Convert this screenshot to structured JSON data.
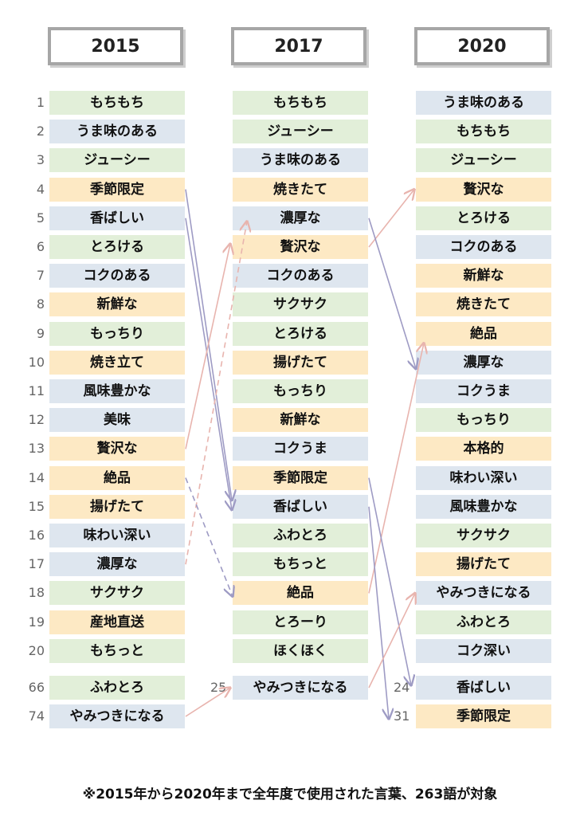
{
  "years": [
    "2015",
    "2017",
    "2020"
  ],
  "ranks": [
    "1",
    "2",
    "3",
    "4",
    "5",
    "6",
    "7",
    "8",
    "9",
    "10",
    "11",
    "12",
    "13",
    "14",
    "15",
    "16",
    "17",
    "18",
    "19",
    "20"
  ],
  "col2015": [
    {
      "label": "もちもち",
      "color": "green"
    },
    {
      "label": "うま味のある",
      "color": "blue"
    },
    {
      "label": "ジューシー",
      "color": "green"
    },
    {
      "label": "季節限定",
      "color": "orange"
    },
    {
      "label": "香ばしい",
      "color": "blue"
    },
    {
      "label": "とろける",
      "color": "green"
    },
    {
      "label": "コクのある",
      "color": "blue"
    },
    {
      "label": "新鮮な",
      "color": "orange"
    },
    {
      "label": "もっちり",
      "color": "green"
    },
    {
      "label": "焼き立て",
      "color": "orange"
    },
    {
      "label": "風味豊かな",
      "color": "blue"
    },
    {
      "label": "美味",
      "color": "blue"
    },
    {
      "label": "贅沢な",
      "color": "orange"
    },
    {
      "label": "絶品",
      "color": "orange"
    },
    {
      "label": "揚げたて",
      "color": "orange"
    },
    {
      "label": "味わい深い",
      "color": "blue"
    },
    {
      "label": "濃厚な",
      "color": "blue"
    },
    {
      "label": "サクサク",
      "color": "green"
    },
    {
      "label": "産地直送",
      "color": "orange"
    },
    {
      "label": "もちっと",
      "color": "green"
    }
  ],
  "col2017": [
    {
      "label": "もちもち",
      "color": "green"
    },
    {
      "label": "ジューシー",
      "color": "green"
    },
    {
      "label": "うま味のある",
      "color": "blue"
    },
    {
      "label": "焼きたて",
      "color": "orange"
    },
    {
      "label": "濃厚な",
      "color": "blue"
    },
    {
      "label": "贅沢な",
      "color": "orange"
    },
    {
      "label": "コクのある",
      "color": "blue"
    },
    {
      "label": "サクサク",
      "color": "green"
    },
    {
      "label": "とろける",
      "color": "green"
    },
    {
      "label": "揚げたて",
      "color": "orange"
    },
    {
      "label": "もっちり",
      "color": "green"
    },
    {
      "label": "新鮮な",
      "color": "orange"
    },
    {
      "label": "コクうま",
      "color": "blue"
    },
    {
      "label": "季節限定",
      "color": "orange"
    },
    {
      "label": "香ばしい",
      "color": "blue"
    },
    {
      "label": "ふわとろ",
      "color": "green"
    },
    {
      "label": "もちっと",
      "color": "green"
    },
    {
      "label": "絶品",
      "color": "orange"
    },
    {
      "label": "とろーり",
      "color": "green"
    },
    {
      "label": "ほくほく",
      "color": "green"
    }
  ],
  "col2020": [
    {
      "label": "うま味のある",
      "color": "blue"
    },
    {
      "label": "もちもち",
      "color": "green"
    },
    {
      "label": "ジューシー",
      "color": "green"
    },
    {
      "label": "贅沢な",
      "color": "orange"
    },
    {
      "label": "とろける",
      "color": "green"
    },
    {
      "label": "コクのある",
      "color": "blue"
    },
    {
      "label": "新鮮な",
      "color": "orange"
    },
    {
      "label": "焼きたて",
      "color": "orange"
    },
    {
      "label": "絶品",
      "color": "orange"
    },
    {
      "label": "濃厚な",
      "color": "blue"
    },
    {
      "label": "コクうま",
      "color": "blue"
    },
    {
      "label": "もっちり",
      "color": "green"
    },
    {
      "label": "本格的",
      "color": "orange"
    },
    {
      "label": "味わい深い",
      "color": "blue"
    },
    {
      "label": "風味豊かな",
      "color": "blue"
    },
    {
      "label": "サクサク",
      "color": "green"
    },
    {
      "label": "揚げたて",
      "color": "orange"
    },
    {
      "label": "やみつきになる",
      "color": "blue"
    },
    {
      "label": "ふわとろ",
      "color": "green"
    },
    {
      "label": "コク深い",
      "color": "blue"
    }
  ],
  "extra2015": [
    {
      "rank": "66",
      "label": "ふわとろ",
      "color": "green"
    },
    {
      "rank": "74",
      "label": "やみつきになる",
      "color": "blue"
    }
  ],
  "extra2017": [
    {
      "rank": "25",
      "label": "やみつきになる",
      "color": "blue"
    }
  ],
  "extra2020": [
    {
      "rank": "24",
      "label": "香ばしい",
      "color": "blue"
    },
    {
      "rank": "31",
      "label": "季節限定",
      "color": "orange"
    }
  ],
  "colors": {
    "green": "#e2efd9",
    "blue": "#dee6ef",
    "orange": "#fde9c4",
    "arrow_up": "#e8b4ae",
    "arrow_down": "#9e9bc4"
  },
  "footnote": "※2015年から2020年まで全年度で使用された言葉、263語が対象"
}
